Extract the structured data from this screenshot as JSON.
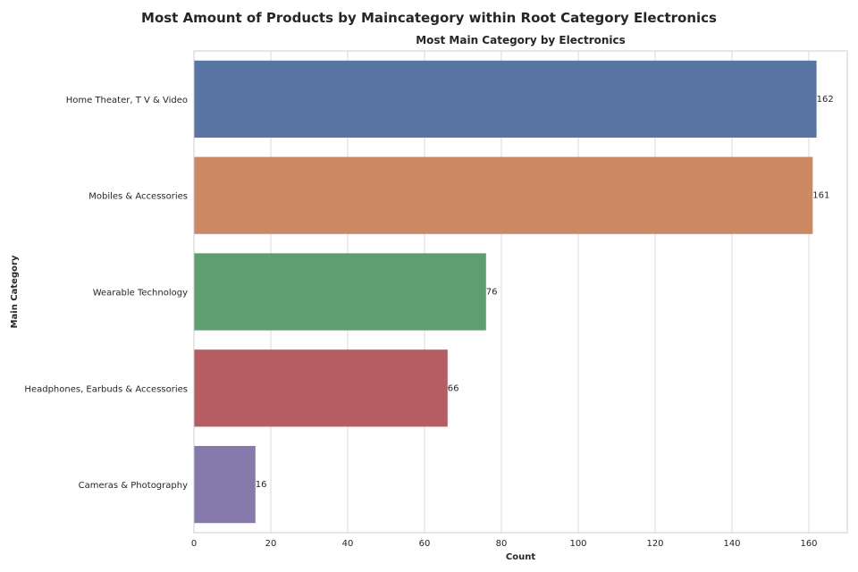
{
  "chart_data": {
    "type": "bar",
    "orientation": "horizontal",
    "suptitle": "Most Amount of Products by Maincategory within Root Category Electronics",
    "title": "Most Main Category by Electronics",
    "xlabel": "Count",
    "ylabel": "Main Category",
    "categories": [
      "Home Theater, T V & Video",
      "Mobiles & Accessories",
      "Wearable Technology",
      "Headphones, Earbuds & Accessories",
      "Cameras & Photography"
    ],
    "values": [
      162,
      161,
      76,
      66,
      16
    ],
    "data_labels": [
      "162",
      "161",
      "76",
      "66",
      "16"
    ],
    "colors": [
      "#5875a4",
      "#cc8963",
      "#5f9e6e",
      "#b55d60",
      "#857aab"
    ],
    "xlim": [
      0,
      170
    ],
    "xticks": [
      0,
      20,
      40,
      60,
      80,
      100,
      120,
      140,
      160
    ],
    "xtick_labels": [
      "0",
      "20",
      "40",
      "60",
      "80",
      "100",
      "120",
      "140",
      "160"
    ],
    "grid": "x-axis vertical lines",
    "legend": "none"
  }
}
